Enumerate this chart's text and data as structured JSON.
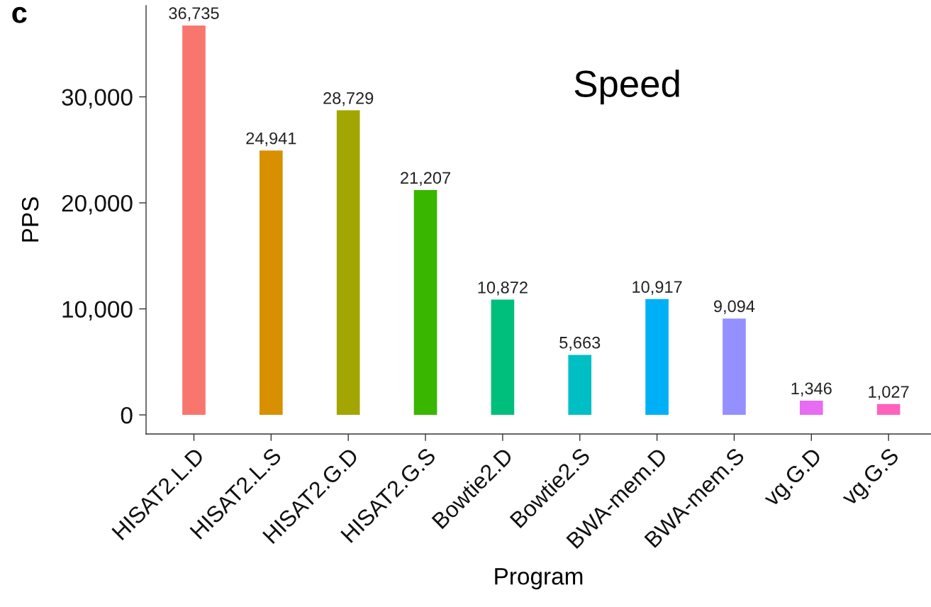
{
  "chart_data": {
    "type": "bar",
    "title": "Speed",
    "xlabel": "Program",
    "ylabel": "PPS",
    "annotations": [
      "c"
    ],
    "categories": [
      "HISAT2.L.D",
      "HISAT2.L.S",
      "HISAT2.G.D",
      "HISAT2.G.S",
      "Bowtie2.D",
      "Bowtie2.S",
      "BWA-mem.D",
      "BWA-mem.S",
      "vg.G.D",
      "vg.G.S"
    ],
    "values": [
      36735,
      24941,
      28729,
      21207,
      10872,
      5663,
      10917,
      9094,
      1346,
      1027
    ],
    "colors": [
      "#f8766d",
      "#d89000",
      "#a3a500",
      "#39b600",
      "#00bf7d",
      "#00bfc4",
      "#00b0f6",
      "#9590ff",
      "#e76bf3",
      "#ff62bc"
    ],
    "value_labels": [
      "36,735",
      "24,941",
      "28,729",
      "21,207",
      "10,872",
      "5,663",
      "10,917",
      "9,094",
      "1,346",
      "1,027"
    ],
    "ylim": [
      -1800,
      38600
    ],
    "yticks": [
      0,
      {
        "value": 10000,
        "label": "10,000"
      },
      {
        "value": 20000,
        "label": "20,000"
      },
      {
        "value": 30000,
        "label": "30,000"
      }
    ]
  }
}
